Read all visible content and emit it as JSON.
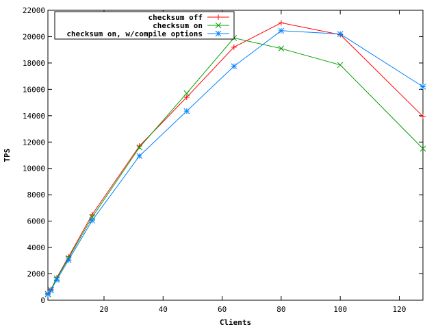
{
  "chart_data": {
    "type": "line",
    "xlabel": "Clients",
    "ylabel": "TPS",
    "xlim": [
      1,
      128
    ],
    "ylim": [
      0,
      22000
    ],
    "xticks": [
      20,
      40,
      60,
      80,
      100,
      120
    ],
    "yticks": [
      0,
      2000,
      4000,
      6000,
      8000,
      10000,
      12000,
      14000,
      16000,
      18000,
      20000,
      22000
    ],
    "grid": false,
    "legend_position": "top-left",
    "x": [
      1,
      2,
      4,
      8,
      16,
      32,
      48,
      64,
      80,
      100,
      128
    ],
    "series": [
      {
        "name": "checksum off",
        "color": "#ff0000",
        "marker": "plus",
        "values": [
          500,
          800,
          1700,
          3300,
          6500,
          11700,
          15400,
          19200,
          21050,
          20150,
          13950
        ]
      },
      {
        "name": "checksum on",
        "color": "#00a000",
        "marker": "cross",
        "values": [
          480,
          780,
          1650,
          3200,
          6300,
          11600,
          15700,
          19900,
          19100,
          17850,
          11500
        ]
      },
      {
        "name": "checksum on, w/compile options",
        "color": "#0080ff",
        "marker": "star",
        "values": [
          450,
          750,
          1550,
          3050,
          6050,
          10950,
          14350,
          17750,
          20450,
          20200,
          16200
        ]
      }
    ]
  }
}
